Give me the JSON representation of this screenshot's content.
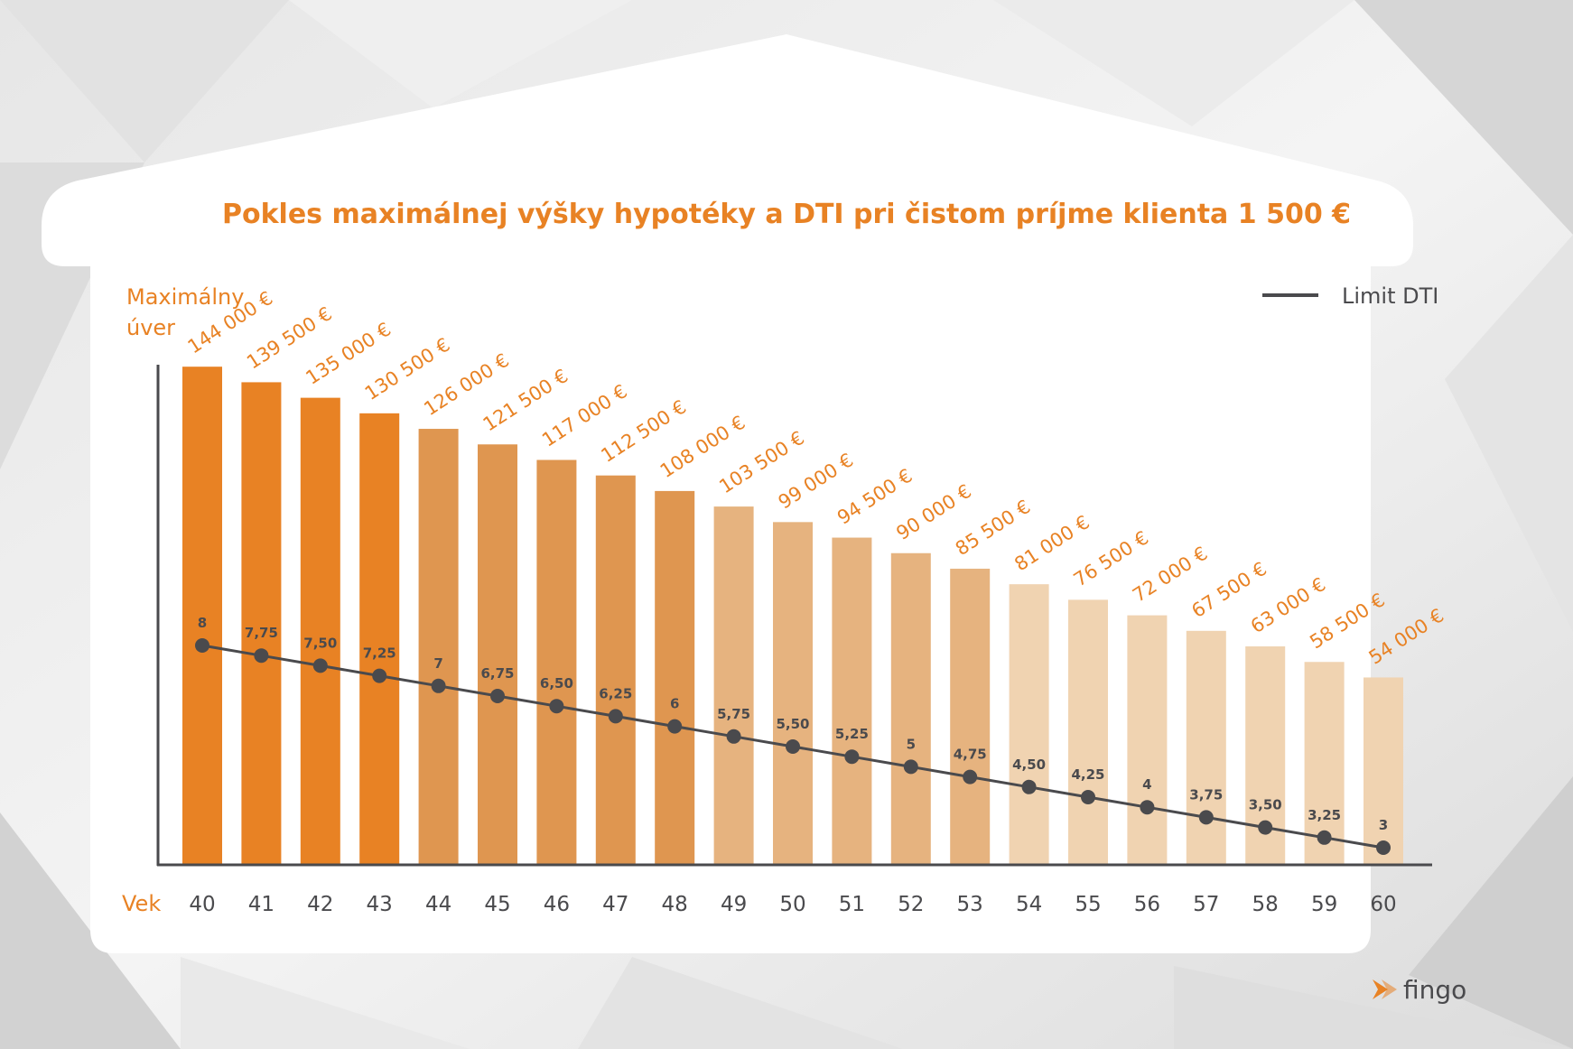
{
  "chart_data": {
    "type": "bar",
    "title": "Pokles maximálnej výšky hypotéky a DTI pri čistom príjme klienta 1 500 €",
    "ylabel_line1": "Maximálny",
    "ylabel_line2": "úver",
    "xlabel": "Vek",
    "categories": [
      "40",
      "41",
      "42",
      "43",
      "44",
      "45",
      "46",
      "47",
      "48",
      "49",
      "50",
      "51",
      "52",
      "53",
      "54",
      "55",
      "56",
      "57",
      "58",
      "59",
      "60"
    ],
    "values": [
      144000,
      139500,
      135000,
      130500,
      126000,
      121500,
      117000,
      112500,
      108000,
      103500,
      99000,
      94500,
      90000,
      85500,
      81000,
      76500,
      72000,
      67500,
      63000,
      58500,
      54000
    ],
    "value_labels": [
      "144 000 €",
      "139 500 €",
      "135 000 €",
      "130 500 €",
      "126 000 €",
      "121 500 €",
      "117 000 €",
      "112 500 €",
      "108 000 €",
      "103 500 €",
      "99 000 €",
      "94 500 €",
      "90 000 €",
      "85 500 €",
      "81 000 €",
      "76 500 €",
      "72 000 €",
      "67 500 €",
      "63 000 €",
      "58 500 €",
      "54 000 €"
    ],
    "bar_colors": [
      "#e88224",
      "#e88224",
      "#e88224",
      "#e88224",
      "#df9650",
      "#df9650",
      "#df9650",
      "#df9650",
      "#df9650",
      "#e6b37f",
      "#e6b37f",
      "#e6b37f",
      "#e6b37f",
      "#e6b37f",
      "#f0d3b1",
      "#f0d3b1",
      "#f0d3b1",
      "#f0d3b1",
      "#f0d3b1",
      "#f0d3b1",
      "#f0d3b1"
    ],
    "dti_series": {
      "name": "Limit DTI",
      "values": [
        8,
        7.75,
        7.5,
        7.25,
        7,
        6.75,
        6.5,
        6.25,
        6,
        5.75,
        5.5,
        5.25,
        5,
        4.75,
        4.5,
        4.25,
        4,
        3.75,
        3.5,
        3.25,
        3
      ],
      "labels": [
        "8",
        "7,75",
        "7,50",
        "7,25",
        "7",
        "6,75",
        "6,50",
        "6,25",
        "6",
        "5,75",
        "5,50",
        "5,25",
        "5",
        "4,75",
        "4,50",
        "4,25",
        "4",
        "3,75",
        "3,50",
        "3,25",
        "3"
      ],
      "color": "#4a4a4d"
    },
    "legend": {
      "label": "Limit DTI",
      "position": "top-right"
    },
    "ylim": [
      0,
      160000
    ]
  },
  "brand": {
    "name": "fingo",
    "accent": "#e88224",
    "text_color": "#4a4a4d"
  }
}
